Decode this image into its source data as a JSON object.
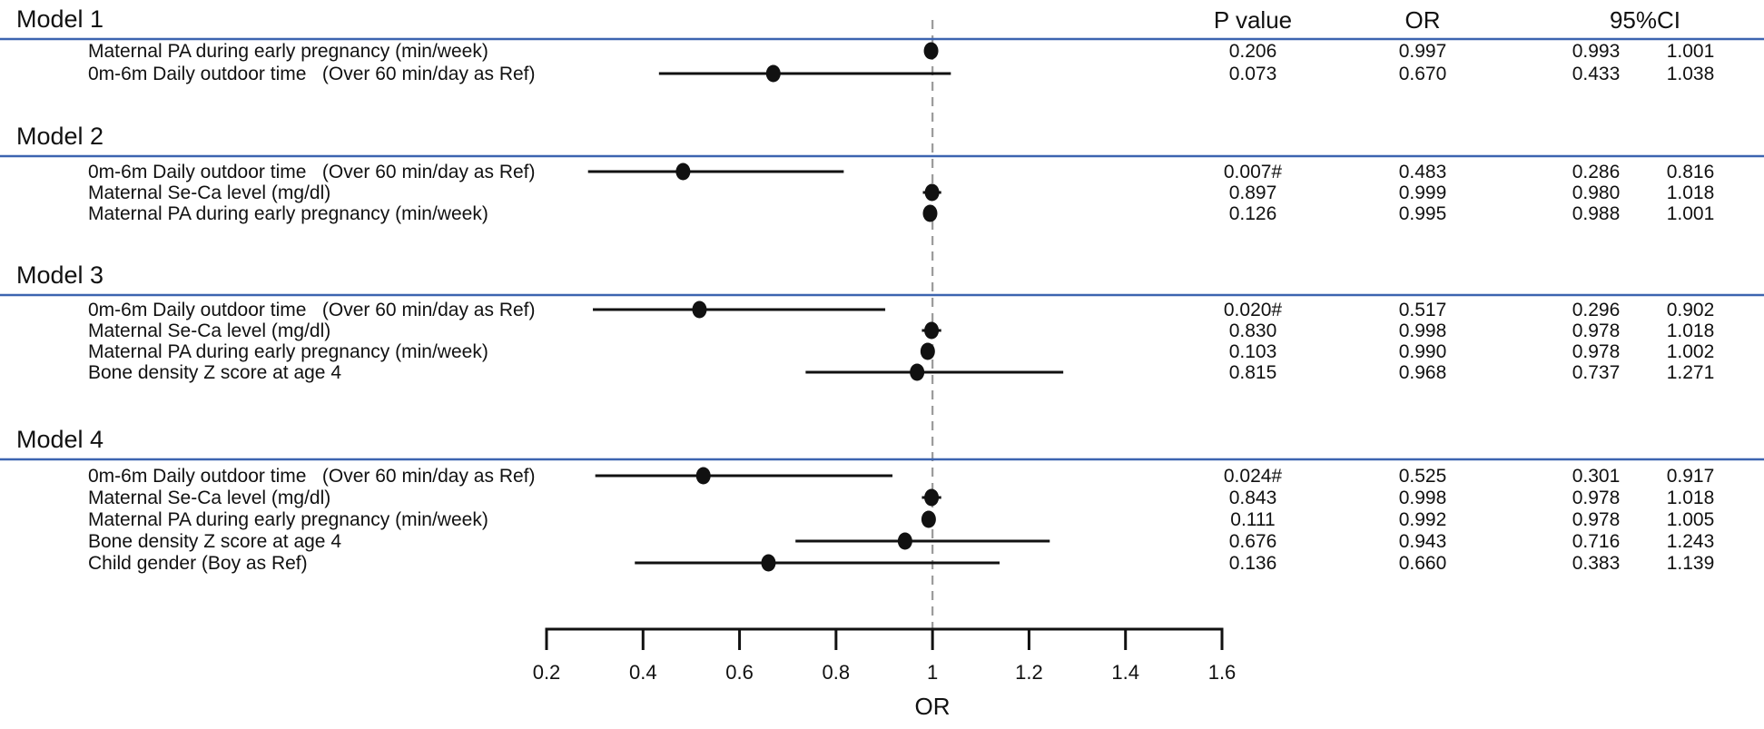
{
  "chart_data": {
    "type": "forest",
    "xlabel": "OR",
    "xlim": [
      0.2,
      1.6
    ],
    "x_tick_labels": [
      "0.2",
      "0.4",
      "0.6",
      "0.8",
      "1",
      "1.2",
      "1.4",
      "1.6"
    ],
    "reference_line": 1,
    "column_headers": [
      "P value",
      "OR",
      "95%CI"
    ],
    "significance_marker": "#",
    "colors": {
      "significant_p": "#c8241c",
      "separator_line": "#3c64b0",
      "reference_dashed": "#9a9a9a",
      "marker": "#111111"
    },
    "models": [
      {
        "name": "Model 1",
        "rows": [
          {
            "label": "Maternal PA during early pregnancy (min/week)",
            "p": "0.206",
            "sig": false,
            "or": "0.997",
            "ci_low": "0.993",
            "ci_high": "1.001"
          },
          {
            "label": "0m-6m Daily outdoor time   (Over 60 min/day as Ref)",
            "p": "0.073",
            "sig": false,
            "or": "0.670",
            "ci_low": "0.433",
            "ci_high": "1.038"
          }
        ]
      },
      {
        "name": "Model 2",
        "rows": [
          {
            "label": "0m-6m Daily outdoor time   (Over 60 min/day as Ref)",
            "p": "0.007#",
            "sig": true,
            "or": "0.483",
            "ci_low": "0.286",
            "ci_high": "0.816"
          },
          {
            "label": "Maternal Se-Ca level (mg/dl)",
            "p": "0.897",
            "sig": false,
            "or": "0.999",
            "ci_low": "0.980",
            "ci_high": "1.018"
          },
          {
            "label": "Maternal PA during early pregnancy (min/week)",
            "p": "0.126",
            "sig": false,
            "or": "0.995",
            "ci_low": "0.988",
            "ci_high": "1.001"
          }
        ]
      },
      {
        "name": "Model 3",
        "rows": [
          {
            "label": "0m-6m Daily outdoor time   (Over 60 min/day as Ref)",
            "p": "0.020#",
            "sig": true,
            "or": "0.517",
            "ci_low": "0.296",
            "ci_high": "0.902"
          },
          {
            "label": "Maternal Se-Ca level (mg/dl)",
            "p": "0.830",
            "sig": false,
            "or": "0.998",
            "ci_low": "0.978",
            "ci_high": "1.018"
          },
          {
            "label": "Maternal PA during early pregnancy (min/week)",
            "p": "0.103",
            "sig": false,
            "or": "0.990",
            "ci_low": "0.978",
            "ci_high": "1.002"
          },
          {
            "label": "Bone density Z score at age 4",
            "p": "0.815",
            "sig": false,
            "or": "0.968",
            "ci_low": "0.737",
            "ci_high": "1.271"
          }
        ]
      },
      {
        "name": "Model 4",
        "rows": [
          {
            "label": "0m-6m Daily outdoor time   (Over 60 min/day as Ref)",
            "p": "0.024#",
            "sig": true,
            "or": "0.525",
            "ci_low": "0.301",
            "ci_high": "0.917"
          },
          {
            "label": "Maternal Se-Ca level (mg/dl)",
            "p": "0.843",
            "sig": false,
            "or": "0.998",
            "ci_low": "0.978",
            "ci_high": "1.018"
          },
          {
            "label": "Maternal PA during early pregnancy (min/week)",
            "p": "0.111",
            "sig": false,
            "or": "0.992",
            "ci_low": "0.978",
            "ci_high": "1.005"
          },
          {
            "label": "Bone density Z score at age 4",
            "p": "0.676",
            "sig": false,
            "or": "0.943",
            "ci_low": "0.716",
            "ci_high": "1.243"
          },
          {
            "label": "Child gender (Boy as Ref)",
            "p": "0.136",
            "sig": false,
            "or": "0.660",
            "ci_low": "0.383",
            "ci_high": "1.139"
          }
        ]
      }
    ]
  }
}
